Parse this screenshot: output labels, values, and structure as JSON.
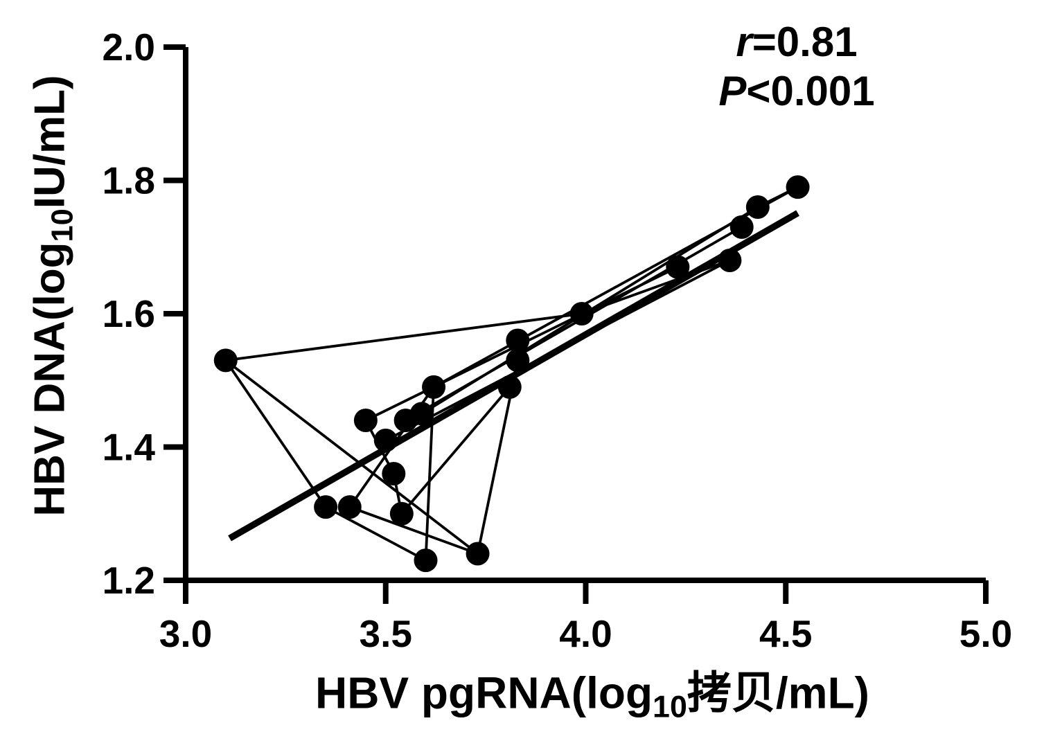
{
  "colors": {
    "ink": "#000000",
    "background": "#ffffff"
  },
  "labels": {
    "y_axis": {
      "prefix": "HBV DNA(log",
      "sub": "10",
      "suffix": "IU/mL)"
    },
    "x_axis": {
      "prefix": "HBV pgRNA(log",
      "sub": "10",
      "suffix": "拷贝/mL)"
    },
    "annotation": {
      "r_symbol": "r",
      "r_rest": "=0.81",
      "p_symbol": "P",
      "p_rest": "<0.001"
    }
  },
  "chart_data": {
    "type": "scatter",
    "title": "",
    "xlabel": "HBV pgRNA(log10 拷贝/mL)",
    "ylabel": "HBV DNA(log10 IU/mL)",
    "annotation_text": "r=0.81, P<0.001",
    "xlim": [
      3.0,
      5.0
    ],
    "ylim": [
      1.2,
      2.0
    ],
    "x_ticks": [
      3.0,
      3.5,
      4.0,
      4.5,
      5.0
    ],
    "x_tick_labels": [
      "3.0",
      "3.5",
      "4.0",
      "4.5",
      "5.0"
    ],
    "y_ticks": [
      2.0,
      1.8,
      1.6,
      1.4,
      1.2
    ],
    "y_tick_labels": [
      "2.0",
      "1.8",
      "1.6",
      "1.4",
      "1.2"
    ],
    "grid": false,
    "legend": "none",
    "points": [
      [
        3.1,
        1.53
      ],
      [
        3.35,
        1.31
      ],
      [
        3.41,
        1.31
      ],
      [
        3.45,
        1.44
      ],
      [
        3.5,
        1.41
      ],
      [
        3.52,
        1.36
      ],
      [
        3.54,
        1.3
      ],
      [
        3.55,
        1.44
      ],
      [
        3.59,
        1.45
      ],
      [
        3.6,
        1.23
      ],
      [
        3.62,
        1.49
      ],
      [
        3.73,
        1.24
      ],
      [
        3.81,
        1.49
      ],
      [
        3.83,
        1.53
      ],
      [
        3.83,
        1.56
      ],
      [
        3.99,
        1.6
      ],
      [
        4.23,
        1.67
      ],
      [
        4.36,
        1.68
      ],
      [
        4.39,
        1.73
      ],
      [
        4.43,
        1.76
      ],
      [
        4.53,
        1.79
      ]
    ],
    "connections": [
      [
        0,
        15
      ],
      [
        0,
        11
      ],
      [
        0,
        1
      ],
      [
        2,
        10
      ],
      [
        1,
        9
      ],
      [
        2,
        11
      ],
      [
        10,
        9
      ],
      [
        13,
        11
      ],
      [
        12,
        6
      ],
      [
        5,
        6
      ],
      [
        3,
        5
      ],
      [
        3,
        16
      ],
      [
        4,
        17
      ],
      [
        7,
        18
      ],
      [
        8,
        19
      ],
      [
        10,
        20
      ],
      [
        19,
        20
      ],
      [
        15,
        17
      ]
    ],
    "fit_line": {
      "x1": 3.11,
      "y1": 1.263,
      "x2": 4.53,
      "y2": 1.751
    }
  }
}
